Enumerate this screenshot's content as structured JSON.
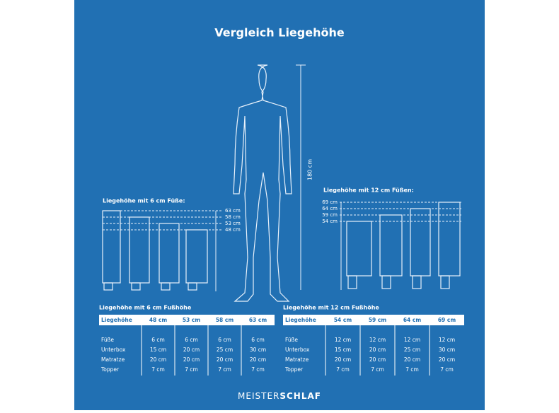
{
  "title": "Vergleich Liegehöhe",
  "figure": {
    "height_label": "180 cm"
  },
  "diagrams": [
    {
      "label": "Liegehöhe mit 6 cm Füße:",
      "heights": [
        "63 cm",
        "58 cm",
        "53 cm",
        "48 cm"
      ]
    },
    {
      "label": "Liegehöhe mit 12 cm Füßen:",
      "heights": [
        "69 cm",
        "64 cm",
        "59 cm",
        "54 cm"
      ]
    }
  ],
  "tables": [
    {
      "title": "Liegehöhe mit 6 cm Fußhöhe",
      "header": [
        "Liegehöhe",
        "48 cm",
        "53 cm",
        "58 cm",
        "63 cm"
      ],
      "rows": [
        [
          "Füße",
          "6 cm",
          "6 cm",
          "6 cm",
          "6 cm"
        ],
        [
          "Unterbox",
          "15 cm",
          "20 cm",
          "25 cm",
          "30 cm"
        ],
        [
          "Matratze",
          "20 cm",
          "20 cm",
          "20 cm",
          "20 cm"
        ],
        [
          "Topper",
          "7 cm",
          "7 cm",
          "7 cm",
          "7 cm"
        ]
      ]
    },
    {
      "title": "Liegehöhe mit 12 cm Fußhöhe",
      "header": [
        "Liegehöhe",
        "54 cm",
        "59 cm",
        "64 cm",
        "69 cm"
      ],
      "rows": [
        [
          "Füße",
          "12 cm",
          "12 cm",
          "12 cm",
          "12 cm"
        ],
        [
          "Unterbox",
          "15 cm",
          "20 cm",
          "25 cm",
          "30 cm"
        ],
        [
          "Matratze",
          "20 cm",
          "20 cm",
          "20 cm",
          "20 cm"
        ],
        [
          "Topper",
          "7 cm",
          "7 cm",
          "7 cm",
          "7 cm"
        ]
      ]
    }
  ],
  "logo": {
    "part1": "MEISTER",
    "part2": "SCHLAF"
  }
}
